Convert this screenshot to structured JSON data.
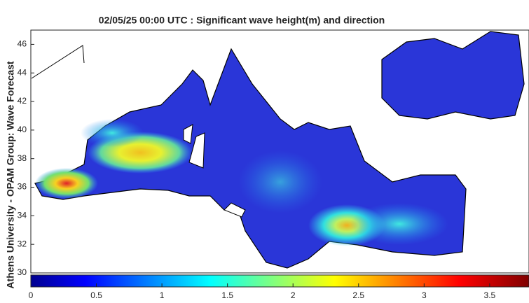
{
  "title": "02/05/25 00:00 UTC : Significant wave height(m) and direction",
  "ylabel": "Athens University - OPAM Group: Wave Forecast",
  "lat_axis": {
    "lim": [
      30,
      47
    ],
    "ticks": [
      30,
      32,
      34,
      36,
      38,
      40,
      42,
      44,
      46
    ]
  },
  "colorbar": {
    "lim": [
      0,
      3.8
    ],
    "ticks": [
      0,
      0.5,
      1,
      1.5,
      2,
      2.5,
      3,
      3.5
    ]
  }
}
